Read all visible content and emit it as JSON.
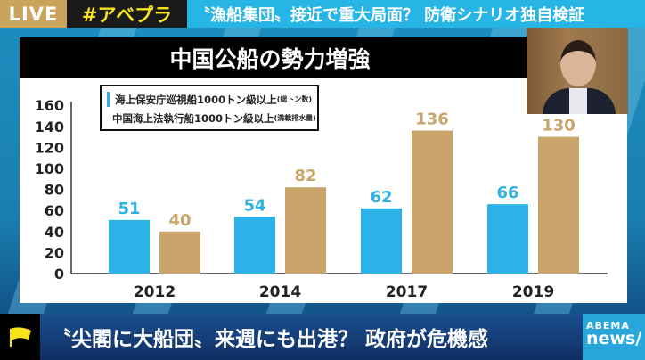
{
  "top_bar": {
    "live": "LIVE",
    "tag": "#アベプラ",
    "headline": "〝漁船集団〟接近で重大局面？ 防衛シナリオ独自検証"
  },
  "ticker": {
    "text": "〝尖閣に大船団〟来週にも出港？ 政府が危機感",
    "logo_top": "ABEMA",
    "logo_bottom": "news/"
  },
  "colors": {
    "blue": "#2cb2e6",
    "brown": "#c9a46b"
  },
  "chart_data": {
    "type": "bar",
    "title": "中国公船の勢力増強",
    "categories": [
      "2012",
      "2014",
      "2017",
      "2019"
    ],
    "series": [
      {
        "name": "海上保安庁巡視船1000トン級以上",
        "note": "(総トン数)",
        "values": [
          51,
          54,
          62,
          66
        ]
      },
      {
        "name": "中国海上法執行船1000トン級以上",
        "note": "(満載排水量)",
        "values": [
          40,
          82,
          136,
          130
        ]
      }
    ],
    "yticks": [
      "0",
      "20",
      "40",
      "60",
      "80",
      "100",
      "120",
      "140",
      "160"
    ],
    "ylim": [
      0,
      160
    ],
    "xlabel": "",
    "ylabel": "",
    "grid": false,
    "legend": "top-left"
  }
}
